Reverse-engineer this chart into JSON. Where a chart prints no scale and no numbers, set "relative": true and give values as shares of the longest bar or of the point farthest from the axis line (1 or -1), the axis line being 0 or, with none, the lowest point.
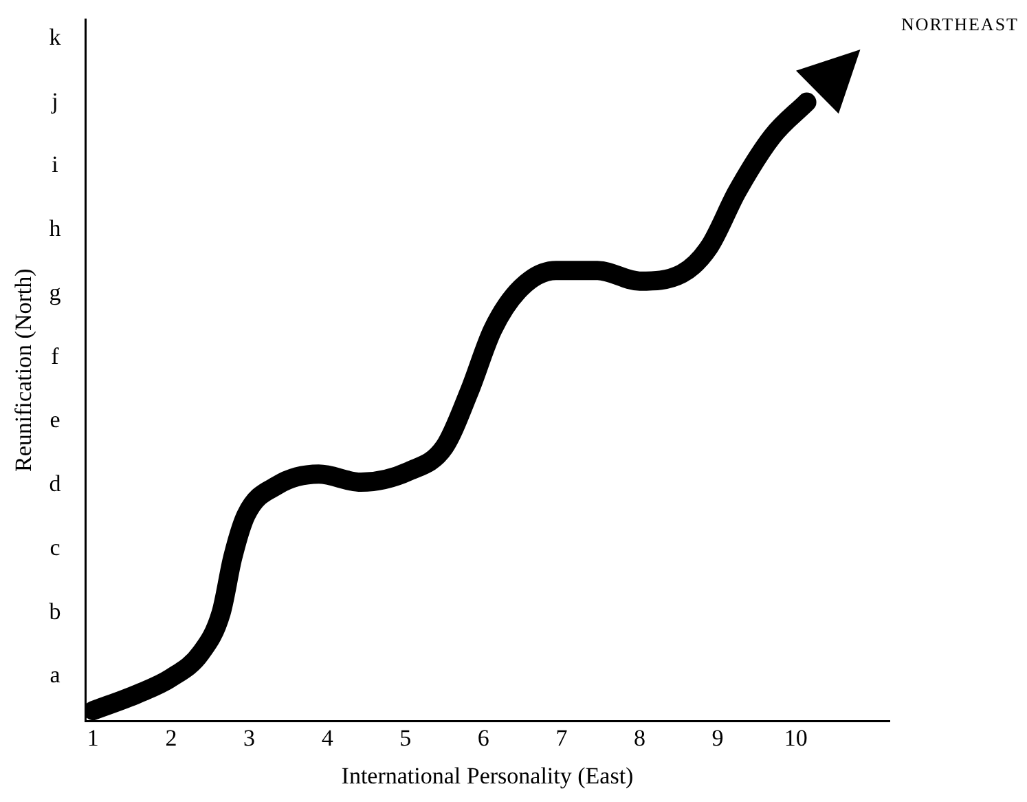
{
  "chart_data": {
    "type": "line",
    "xlabel": "International Personality (East)",
    "ylabel": "Reunification (North)",
    "annotations": [
      "NORTHEAST",
      "a",
      "b",
      "c",
      "d",
      "e",
      "f",
      "g",
      "h",
      "i",
      "j",
      "k"
    ],
    "relative": true,
    "series": [
      {
        "color": "#000000",
        "x": [
          1.0,
          1.57,
          2.0,
          2.38,
          2.64,
          2.79,
          2.96,
          3.36,
          3.89,
          4.43,
          5.05,
          5.5,
          5.82,
          6.12,
          6.48,
          6.93,
          7.46,
          8.0,
          8.54,
          8.89,
          9.25,
          9.7,
          10.14
        ],
        "values": [
          0.017,
          0.044,
          0.07,
          0.11,
          0.175,
          0.265,
          0.333,
          0.381,
          0.399,
          0.386,
          0.404,
          0.443,
          0.533,
          0.633,
          0.7,
          0.728,
          0.728,
          0.711,
          0.723,
          0.766,
          0.856,
          0.945,
          1
        ]
      }
    ],
    "xlim": [
      0.9,
      11.2
    ],
    "xticks": [
      1,
      2,
      3,
      4,
      5,
      6,
      7,
      8,
      9,
      10
    ],
    "grid": false,
    "legend": false,
    "marker": "none",
    "line_style": "solid"
  }
}
